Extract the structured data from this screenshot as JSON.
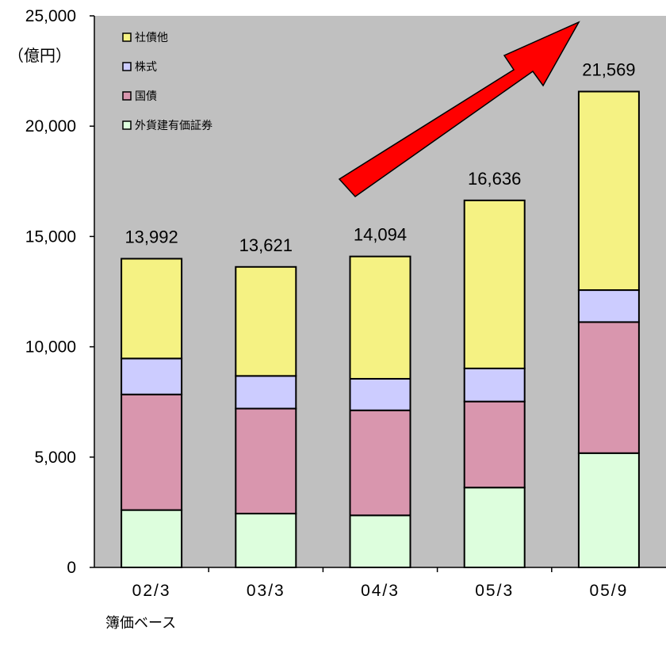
{
  "chart_data": {
    "type": "bar",
    "stacked": true,
    "categories": [
      "02/3",
      "03/3",
      "04/3",
      "05/3",
      "05/9"
    ],
    "series": [
      {
        "name": "外貨建有価証券",
        "color": "#ddfedd",
        "values": [
          2600,
          2440,
          2360,
          3620,
          5180
        ]
      },
      {
        "name": "国債",
        "color": "#d996ae",
        "values": [
          5240,
          4760,
          4760,
          3900,
          5940
        ]
      },
      {
        "name": "株式",
        "color": "#ccccff",
        "values": [
          1630,
          1480,
          1430,
          1500,
          1450
        ]
      },
      {
        "name": "社債他",
        "color": "#f5f283",
        "values": [
          4522,
          4941,
          5544,
          7616,
          8999
        ]
      }
    ],
    "totals": [
      13992,
      13621,
      14094,
      16636,
      21569
    ],
    "total_labels": [
      "13,992",
      "13,621",
      "14,094",
      "16,636",
      "21,569"
    ],
    "ylim": [
      0,
      25000
    ],
    "yticks": [
      0,
      5000,
      10000,
      15000,
      20000,
      25000
    ],
    "ytick_labels": [
      "0",
      "5,000",
      "10,000",
      "15,000",
      "20,000",
      "25,000"
    ],
    "y_unit": "（億円）",
    "footer": "簿価ベース",
    "legend_position": "top-left",
    "plot_background": "#c0c0c0",
    "arrow_color": "#ff0000",
    "grid": false
  }
}
